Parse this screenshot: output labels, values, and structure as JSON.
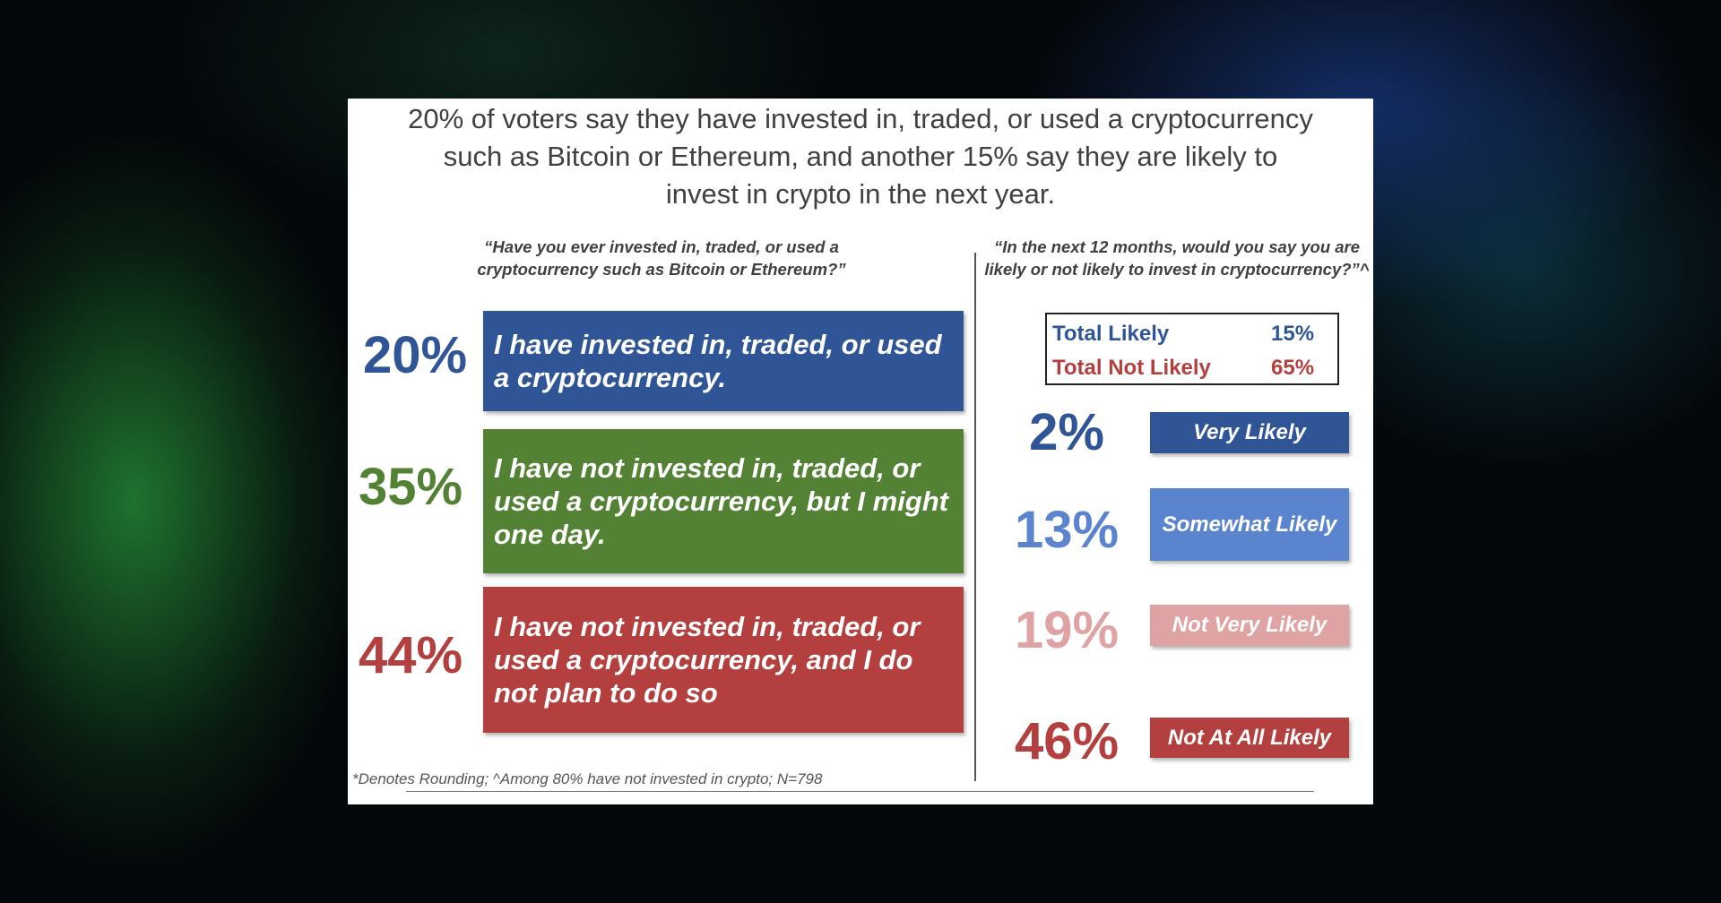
{
  "title": [
    "20% of voters say they have invested in, traded, or used a cryptocurrency",
    "such as Bitcoin or Ethereum, and another 15% say they are likely to",
    "invest in crypto in the next year."
  ],
  "left_question": [
    "“Have you ever invested in, traded, or used a",
    "cryptocurrency such as Bitcoin or Ethereum?”"
  ],
  "right_question": [
    "“In the next 12 months, would you say you are",
    "likely or not likely to invest in cryptocurrency?”^"
  ],
  "totals": {
    "likely_label": "Total Likely",
    "likely_value": "15%",
    "not_likely_label": "Total Not Likely",
    "not_likely_value": "65%"
  },
  "footnote": "*Denotes Rounding; ^Among 80% have not invested in crypto; N=798",
  "colors": {
    "blue": "#2F5597",
    "green": "#548235",
    "red": "#B3403F",
    "light_blue": "#5B84CE",
    "pink": "#E0A3A3"
  },
  "chart_data": [
    {
      "type": "table",
      "title": "“Have you ever invested in, traded, or used a cryptocurrency such as Bitcoin or Ethereum?”",
      "categories": [
        "I have invested in, traded, or used a cryptocurrency.",
        "I have not invested in, traded, or used a cryptocurrency, but I might one day.",
        "I have not invested in, traded, or used a cryptocurrency, and I do not plan to do so"
      ],
      "values": [
        20,
        35,
        44
      ],
      "labels": [
        "20%",
        "35%",
        "44%"
      ]
    },
    {
      "type": "table",
      "title": "“In the next 12 months, would you say you are likely or not likely to invest in cryptocurrency?”^",
      "categories": [
        "Very Likely",
        "Somewhat Likely",
        "Not Very Likely",
        "Not At All Likely"
      ],
      "values": [
        2,
        13,
        19,
        46
      ],
      "labels": [
        "2%",
        "13%",
        "19%",
        "46%"
      ]
    }
  ]
}
